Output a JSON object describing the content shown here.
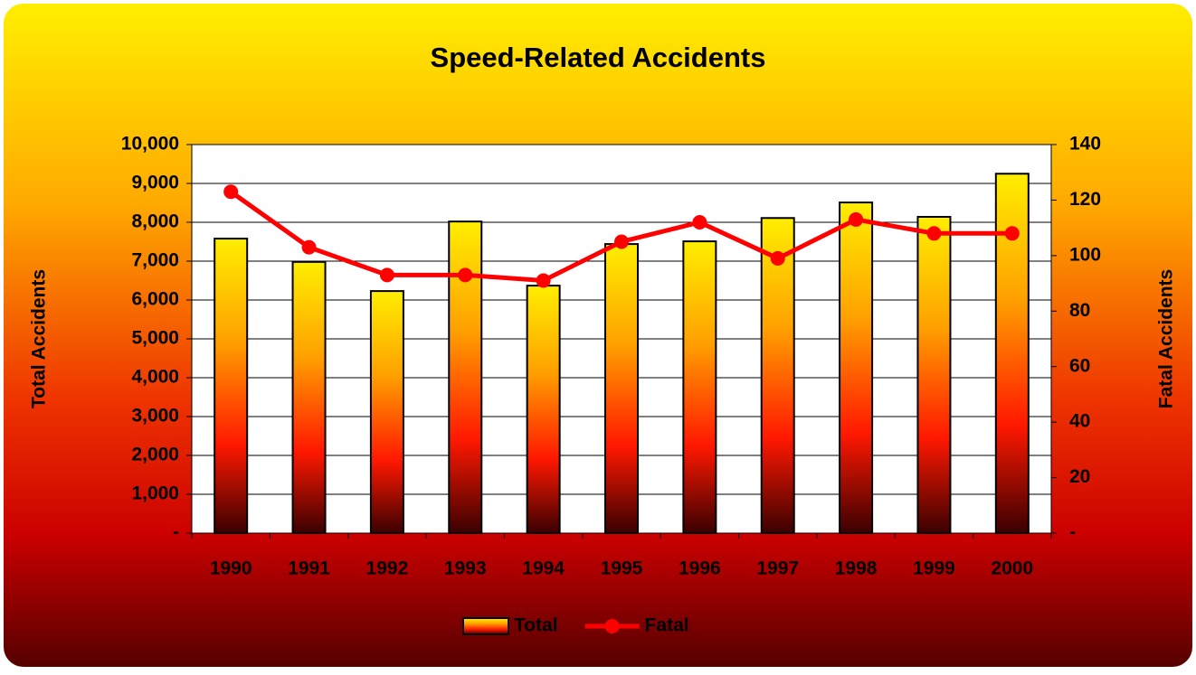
{
  "chart_data": {
    "type": "bar",
    "title": "Speed-Related Accidents",
    "categories": [
      "1990",
      "1991",
      "1992",
      "1993",
      "1994",
      "1995",
      "1996",
      "1997",
      "1998",
      "1999",
      "2000"
    ],
    "series": [
      {
        "name": "Total",
        "type": "bar",
        "values": [
          7580,
          6980,
          6230,
          8020,
          6370,
          7440,
          7510,
          8110,
          8510,
          8140,
          9250
        ]
      },
      {
        "name": "Fatal",
        "type": "line",
        "color": "#ff0000",
        "axis": "y2",
        "values": [
          123,
          103,
          93,
          93,
          91,
          105,
          112,
          99,
          113,
          108,
          108
        ]
      }
    ],
    "y_label": "Total Accidents",
    "y2_label": "Fatal Accidents",
    "ylim": [
      0,
      10000
    ],
    "yticks": [
      {
        "value": 0,
        "label": "-"
      },
      {
        "value": 1000,
        "label": "1,000"
      },
      {
        "value": 2000,
        "label": "2,000"
      },
      {
        "value": 3000,
        "label": "3,000"
      },
      {
        "value": 4000,
        "label": "4,000"
      },
      {
        "value": 5000,
        "label": "5,000"
      },
      {
        "value": 6000,
        "label": "6,000"
      },
      {
        "value": 7000,
        "label": "7,000"
      },
      {
        "value": 8000,
        "label": "8,000"
      },
      {
        "value": 9000,
        "label": "9,000"
      },
      {
        "value": 10000,
        "label": "10,000"
      }
    ],
    "y2lim": [
      0,
      140
    ],
    "y2ticks": [
      {
        "value": 0,
        "label": "-"
      },
      20,
      40,
      60,
      80,
      100,
      120,
      140
    ],
    "grid": true,
    "legend": "bottom"
  }
}
